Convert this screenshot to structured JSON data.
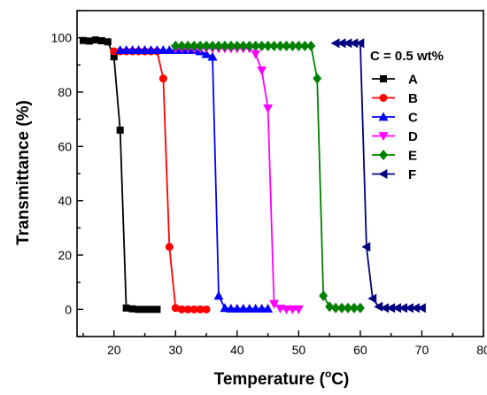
{
  "chart_data": {
    "type": "line",
    "xlabel": "Temperature (°C)",
    "xlabel_prefix": "Temperature (",
    "xlabel_degree": "o",
    "xlabel_suffix": "C)",
    "ylabel": "Transmittance (%)",
    "legend_title": "C = 0.5 wt%",
    "legend_position": "top-right",
    "xlim": [
      14,
      80
    ],
    "ylim": [
      -10,
      110
    ],
    "x_ticks": [
      20,
      30,
      40,
      50,
      60,
      70,
      80
    ],
    "y_ticks": [
      0,
      20,
      40,
      60,
      80,
      100
    ],
    "grid": false,
    "series": [
      {
        "name": "A",
        "color": "#000000",
        "marker": "square",
        "points": [
          [
            15,
            99
          ],
          [
            16,
            98.8
          ],
          [
            17,
            99.2
          ],
          [
            18,
            98.9
          ],
          [
            19,
            98.5
          ],
          [
            20,
            93
          ],
          [
            21,
            66
          ],
          [
            22,
            0.5
          ],
          [
            23,
            0.2
          ],
          [
            24,
            0
          ],
          [
            25,
            0
          ],
          [
            26,
            0
          ],
          [
            27,
            0
          ]
        ]
      },
      {
        "name": "B",
        "color": "#ff0000",
        "marker": "circle",
        "points": [
          [
            20,
            95
          ],
          [
            21,
            95
          ],
          [
            22,
            95
          ],
          [
            23,
            95
          ],
          [
            24,
            95
          ],
          [
            25,
            95
          ],
          [
            26,
            95
          ],
          [
            27,
            95
          ],
          [
            28,
            85
          ],
          [
            29,
            23
          ],
          [
            30,
            0.5
          ],
          [
            31,
            0
          ],
          [
            32,
            0
          ],
          [
            33,
            0
          ],
          [
            34,
            0
          ],
          [
            35,
            0
          ]
        ]
      },
      {
        "name": "C",
        "color": "#0000ff",
        "marker": "triangle-up",
        "points": [
          [
            21,
            95.5
          ],
          [
            22,
            95.5
          ],
          [
            23,
            95.5
          ],
          [
            24,
            95.5
          ],
          [
            25,
            95.5
          ],
          [
            26,
            95.5
          ],
          [
            27,
            95.5
          ],
          [
            28,
            95.5
          ],
          [
            29,
            95.5
          ],
          [
            30,
            95.5
          ],
          [
            31,
            95.5
          ],
          [
            32,
            95.5
          ],
          [
            33,
            95.5
          ],
          [
            34,
            95
          ],
          [
            35,
            94
          ],
          [
            36,
            93
          ],
          [
            37,
            5
          ],
          [
            38,
            0.5
          ],
          [
            39,
            0.3
          ],
          [
            40,
            0.3
          ],
          [
            41,
            0.3
          ],
          [
            42,
            0.3
          ],
          [
            43,
            0.3
          ],
          [
            44,
            0.3
          ],
          [
            45,
            0.3
          ]
        ]
      },
      {
        "name": "D",
        "color": "#ff00ff",
        "marker": "triangle-down",
        "points": [
          [
            30,
            96
          ],
          [
            31,
            96
          ],
          [
            32,
            96
          ],
          [
            33,
            96
          ],
          [
            34,
            96
          ],
          [
            35,
            96
          ],
          [
            36,
            96
          ],
          [
            37,
            96
          ],
          [
            38,
            96
          ],
          [
            39,
            96
          ],
          [
            40,
            96
          ],
          [
            41,
            96
          ],
          [
            42,
            96
          ],
          [
            43,
            94
          ],
          [
            44,
            88
          ],
          [
            45,
            74
          ],
          [
            46,
            2
          ],
          [
            47,
            0.3
          ],
          [
            48,
            0
          ],
          [
            49,
            0
          ],
          [
            50,
            0
          ]
        ]
      },
      {
        "name": "E",
        "color": "#008000",
        "marker": "diamond",
        "points": [
          [
            30,
            97
          ],
          [
            31,
            97
          ],
          [
            32,
            97
          ],
          [
            33,
            97
          ],
          [
            34,
            97
          ],
          [
            35,
            97
          ],
          [
            36,
            97
          ],
          [
            37,
            97
          ],
          [
            38,
            97
          ],
          [
            39,
            97
          ],
          [
            40,
            97
          ],
          [
            41,
            97
          ],
          [
            42,
            97
          ],
          [
            43,
            97
          ],
          [
            44,
            97
          ],
          [
            45,
            97
          ],
          [
            46,
            97
          ],
          [
            47,
            97
          ],
          [
            48,
            97
          ],
          [
            49,
            97
          ],
          [
            50,
            97
          ],
          [
            51,
            97
          ],
          [
            52,
            97
          ],
          [
            53,
            85
          ],
          [
            54,
            5
          ],
          [
            55,
            1
          ],
          [
            56,
            0.5
          ],
          [
            57,
            0.5
          ],
          [
            58,
            0.5
          ],
          [
            59,
            0.5
          ],
          [
            60,
            0.5
          ]
        ]
      },
      {
        "name": "F",
        "color": "#000080",
        "marker": "triangle-left",
        "points": [
          [
            56,
            98
          ],
          [
            57,
            98
          ],
          [
            58,
            98
          ],
          [
            59,
            98
          ],
          [
            60,
            98
          ],
          [
            61,
            23
          ],
          [
            62,
            4
          ],
          [
            63,
            1
          ],
          [
            64,
            0.5
          ],
          [
            65,
            0.5
          ],
          [
            66,
            0.5
          ],
          [
            67,
            0.5
          ],
          [
            68,
            0.5
          ],
          [
            69,
            0.5
          ],
          [
            70,
            0.5
          ]
        ]
      }
    ]
  }
}
